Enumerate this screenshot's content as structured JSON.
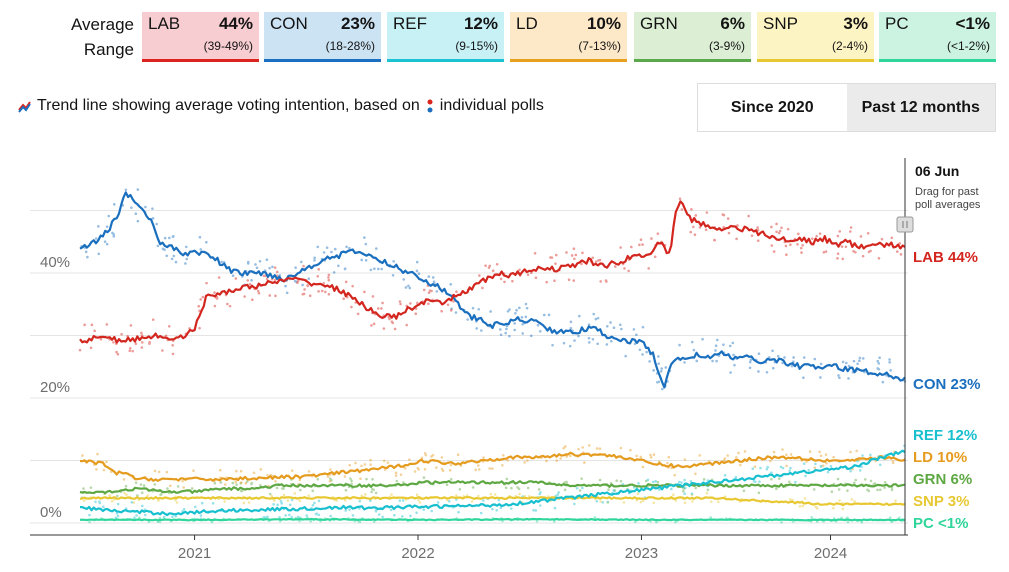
{
  "header": {
    "average_label": "Average",
    "range_label": "Range"
  },
  "parties": [
    {
      "abbr": "LAB",
      "avg": "44%",
      "range": "(39-49%)",
      "color": "#e4003b",
      "bg": "#f8cdd1",
      "line": "#dc241f"
    },
    {
      "abbr": "CON",
      "avg": "23%",
      "range": "(18-28%)",
      "color": "#0087dc",
      "bg": "#cce3f3",
      "line": "#1b6fc0"
    },
    {
      "abbr": "REF",
      "avg": "12%",
      "range": "(9-15%)",
      "color": "#12b6cf",
      "bg": "#c8f1f6",
      "line": "#1bc3d2"
    },
    {
      "abbr": "LD",
      "avg": "10%",
      "range": "(7-13%)",
      "color": "#faa61a",
      "bg": "#fde9c8",
      "line": "#e8a020"
    },
    {
      "abbr": "GRN",
      "avg": "6%",
      "range": "(3-9%)",
      "color": "#6ab023",
      "bg": "#dcefd4",
      "line": "#5aa84a"
    },
    {
      "abbr": "SNP",
      "avg": "3%",
      "range": "(2-4%)",
      "color": "#fdf38e",
      "bg": "#fdf4c4",
      "line": "#e8c832"
    },
    {
      "abbr": "PC",
      "avg": "<1%",
      "range": "(<1-2%)",
      "color": "#008142",
      "bg": "#ccf2e2",
      "line": "#2fd59a"
    }
  ],
  "legend_note": {
    "text": "Trend line showing average voting intention, based on",
    "text2": "individual polls"
  },
  "buttons": {
    "since": "Since 2020",
    "past": "Past 12 months"
  },
  "chart_data": {
    "type": "line",
    "x_ticks": [
      "2021",
      "2022",
      "2023",
      "2024"
    ],
    "y_ticks": [
      "0%",
      "20%",
      "40%"
    ],
    "ylim": [
      0,
      60
    ],
    "date_marker": {
      "label": "06 Jun",
      "hint": "Drag for past poll averages"
    },
    "series": [
      {
        "name": "LAB",
        "end_label": "LAB 44%",
        "color": "#d3261f",
        "points": [
          [
            0,
            29
          ],
          [
            4,
            30
          ],
          [
            7,
            29
          ],
          [
            10,
            29.5
          ],
          [
            13,
            30
          ],
          [
            16,
            29.5
          ],
          [
            18,
            30
          ],
          [
            20,
            31
          ],
          [
            22,
            36
          ],
          [
            25,
            37
          ],
          [
            28,
            37.5
          ],
          [
            31,
            38
          ],
          [
            34,
            38.5
          ],
          [
            37,
            39
          ],
          [
            40,
            38.5
          ],
          [
            43,
            38
          ],
          [
            46,
            37
          ],
          [
            49,
            35
          ],
          [
            51,
            34
          ],
          [
            53,
            33
          ],
          [
            55,
            33
          ],
          [
            57,
            34
          ],
          [
            59,
            35
          ],
          [
            61,
            35.5
          ],
          [
            63,
            35
          ],
          [
            65,
            36
          ],
          [
            67,
            37
          ],
          [
            69,
            38
          ],
          [
            71,
            39
          ],
          [
            73,
            40
          ],
          [
            75,
            39.5
          ],
          [
            77,
            40
          ],
          [
            79,
            40.5
          ],
          [
            81,
            41
          ],
          [
            83,
            40.5
          ],
          [
            85,
            41
          ],
          [
            87,
            41.5
          ],
          [
            89,
            42
          ],
          [
            91,
            41
          ],
          [
            93,
            41.5
          ],
          [
            95,
            42
          ],
          [
            97,
            43
          ],
          [
            99,
            42.5
          ],
          [
            101,
            45
          ],
          [
            103,
            43
          ],
          [
            104,
            50
          ],
          [
            105,
            52
          ],
          [
            106,
            49
          ],
          [
            108,
            48
          ],
          [
            110,
            47.5
          ],
          [
            112,
            47
          ],
          [
            114,
            47.5
          ],
          [
            116,
            47
          ],
          [
            118,
            46.5
          ],
          [
            120,
            46
          ],
          [
            122,
            45.5
          ],
          [
            124,
            45
          ],
          [
            126,
            45.5
          ],
          [
            128,
            45
          ],
          [
            130,
            45.5
          ],
          [
            132,
            44.5
          ],
          [
            134,
            45
          ],
          [
            136,
            44
          ],
          [
            138,
            44.5
          ],
          [
            140,
            44.5
          ],
          [
            142,
            44.5
          ],
          [
            144,
            44
          ]
        ],
        "poll_spread": 2.6,
        "poll_count": 280
      },
      {
        "name": "CON",
        "end_label": "CON 23%",
        "color": "#1a6fbe",
        "points": [
          [
            0,
            44
          ],
          [
            3,
            45
          ],
          [
            5,
            47
          ],
          [
            7,
            50
          ],
          [
            8,
            53
          ],
          [
            9,
            52
          ],
          [
            10,
            51
          ],
          [
            12,
            49
          ],
          [
            14,
            45
          ],
          [
            16,
            44
          ],
          [
            18,
            43
          ],
          [
            20,
            43.5
          ],
          [
            22,
            43
          ],
          [
            24,
            42
          ],
          [
            26,
            40.5
          ],
          [
            28,
            40
          ],
          [
            30,
            40
          ],
          [
            32,
            40
          ],
          [
            34,
            39.5
          ],
          [
            36,
            39
          ],
          [
            38,
            40
          ],
          [
            40,
            41
          ],
          [
            42,
            42
          ],
          [
            44,
            42.5
          ],
          [
            46,
            43
          ],
          [
            48,
            43.5
          ],
          [
            50,
            43
          ],
          [
            52,
            42
          ],
          [
            54,
            41.5
          ],
          [
            56,
            40.5
          ],
          [
            58,
            40
          ],
          [
            60,
            39
          ],
          [
            62,
            38
          ],
          [
            64,
            37
          ],
          [
            66,
            35
          ],
          [
            68,
            33
          ],
          [
            70,
            32.5
          ],
          [
            72,
            31.5
          ],
          [
            74,
            32
          ],
          [
            76,
            32.5
          ],
          [
            78,
            32.5
          ],
          [
            80,
            32
          ],
          [
            82,
            31
          ],
          [
            84,
            30.5
          ],
          [
            86,
            30.5
          ],
          [
            88,
            31
          ],
          [
            90,
            31
          ],
          [
            92,
            30
          ],
          [
            94,
            29.5
          ],
          [
            96,
            29
          ],
          [
            98,
            29
          ],
          [
            100,
            27
          ],
          [
            101,
            24
          ],
          [
            102,
            22
          ],
          [
            103,
            25
          ],
          [
            104,
            26
          ],
          [
            106,
            26.5
          ],
          [
            108,
            27
          ],
          [
            110,
            26.5
          ],
          [
            112,
            27
          ],
          [
            114,
            26.5
          ],
          [
            116,
            26.5
          ],
          [
            118,
            26
          ],
          [
            120,
            26
          ],
          [
            122,
            26
          ],
          [
            124,
            25.5
          ],
          [
            126,
            25
          ],
          [
            128,
            25
          ],
          [
            130,
            25
          ],
          [
            132,
            25
          ],
          [
            134,
            24.5
          ],
          [
            136,
            24.5
          ],
          [
            138,
            24
          ],
          [
            140,
            24
          ],
          [
            142,
            23.5
          ],
          [
            144,
            23
          ]
        ],
        "poll_spread": 2.6,
        "poll_count": 280
      },
      {
        "name": "REF",
        "end_label": "REF 12%",
        "color": "#18bfcf",
        "points": [
          [
            0,
            2.5
          ],
          [
            5,
            2
          ],
          [
            10,
            1.8
          ],
          [
            15,
            1.5
          ],
          [
            20,
            1.7
          ],
          [
            25,
            2
          ],
          [
            30,
            2.1
          ],
          [
            35,
            2.2
          ],
          [
            40,
            2.3
          ],
          [
            45,
            2.5
          ],
          [
            50,
            2.4
          ],
          [
            55,
            2.5
          ],
          [
            60,
            2.6
          ],
          [
            65,
            2.7
          ],
          [
            70,
            2.8
          ],
          [
            75,
            3
          ],
          [
            80,
            3.5
          ],
          [
            85,
            4
          ],
          [
            90,
            4.5
          ],
          [
            95,
            5
          ],
          [
            100,
            5.5
          ],
          [
            105,
            6
          ],
          [
            110,
            6.5
          ],
          [
            115,
            7
          ],
          [
            120,
            7.5
          ],
          [
            125,
            8
          ],
          [
            130,
            8.5
          ],
          [
            135,
            9
          ],
          [
            140,
            10.5
          ],
          [
            144,
            11.5
          ]
        ],
        "poll_spread": 1.5,
        "poll_count": 180
      },
      {
        "name": "LD",
        "end_label": "LD 10%",
        "color": "#e59b1e",
        "points": [
          [
            0,
            10
          ],
          [
            4,
            9.5
          ],
          [
            6,
            8
          ],
          [
            8,
            8
          ],
          [
            10,
            7
          ],
          [
            15,
            7
          ],
          [
            20,
            7
          ],
          [
            25,
            7
          ],
          [
            30,
            7.2
          ],
          [
            35,
            7.3
          ],
          [
            40,
            7.5
          ],
          [
            45,
            8
          ],
          [
            50,
            8.5
          ],
          [
            55,
            9
          ],
          [
            60,
            10
          ],
          [
            65,
            9.5
          ],
          [
            70,
            10
          ],
          [
            75,
            10.5
          ],
          [
            80,
            10.5
          ],
          [
            85,
            11
          ],
          [
            90,
            11
          ],
          [
            95,
            10.5
          ],
          [
            100,
            9.5
          ],
          [
            105,
            9
          ],
          [
            110,
            9.5
          ],
          [
            115,
            10
          ],
          [
            120,
            10.5
          ],
          [
            125,
            10.5
          ],
          [
            130,
            10
          ],
          [
            135,
            10
          ],
          [
            140,
            10.5
          ],
          [
            144,
            10
          ]
        ],
        "poll_spread": 1.5,
        "poll_count": 180
      },
      {
        "name": "GRN",
        "end_label": "GRN 6%",
        "color": "#5ea843",
        "points": [
          [
            0,
            5
          ],
          [
            5,
            5
          ],
          [
            10,
            5.5
          ],
          [
            15,
            5
          ],
          [
            20,
            5
          ],
          [
            25,
            5.5
          ],
          [
            30,
            5.5
          ],
          [
            35,
            6
          ],
          [
            40,
            6
          ],
          [
            45,
            6
          ],
          [
            50,
            6
          ],
          [
            55,
            6
          ],
          [
            60,
            6.5
          ],
          [
            65,
            6.5
          ],
          [
            70,
            6.5
          ],
          [
            75,
            6.5
          ],
          [
            80,
            6.5
          ],
          [
            85,
            6
          ],
          [
            90,
            6
          ],
          [
            95,
            6
          ],
          [
            100,
            6
          ],
          [
            105,
            6
          ],
          [
            110,
            6
          ],
          [
            115,
            6
          ],
          [
            120,
            6
          ],
          [
            125,
            6
          ],
          [
            130,
            6
          ],
          [
            135,
            6
          ],
          [
            140,
            6
          ],
          [
            144,
            6
          ]
        ],
        "poll_spread": 1.2,
        "poll_count": 150
      },
      {
        "name": "SNP",
        "end_label": "SNP 3%",
        "color": "#e8c832",
        "points": [
          [
            0,
            4
          ],
          [
            10,
            4
          ],
          [
            20,
            4
          ],
          [
            30,
            4
          ],
          [
            40,
            4
          ],
          [
            50,
            4
          ],
          [
            60,
            4
          ],
          [
            70,
            4
          ],
          [
            80,
            4
          ],
          [
            90,
            4
          ],
          [
            100,
            4
          ],
          [
            110,
            4
          ],
          [
            120,
            3.5
          ],
          [
            130,
            3
          ],
          [
            140,
            3
          ],
          [
            144,
            3
          ]
        ],
        "poll_spread": 0.8,
        "poll_count": 120
      },
      {
        "name": "PC",
        "end_label": "PC <1%",
        "color": "#2fd59a",
        "points": [
          [
            0,
            0.5
          ],
          [
            20,
            0.5
          ],
          [
            40,
            0.6
          ],
          [
            60,
            0.5
          ],
          [
            80,
            0.6
          ],
          [
            100,
            0.5
          ],
          [
            120,
            0.5
          ],
          [
            140,
            0.5
          ],
          [
            144,
            0.5
          ]
        ],
        "poll_spread": 0.4,
        "poll_count": 90
      }
    ]
  }
}
